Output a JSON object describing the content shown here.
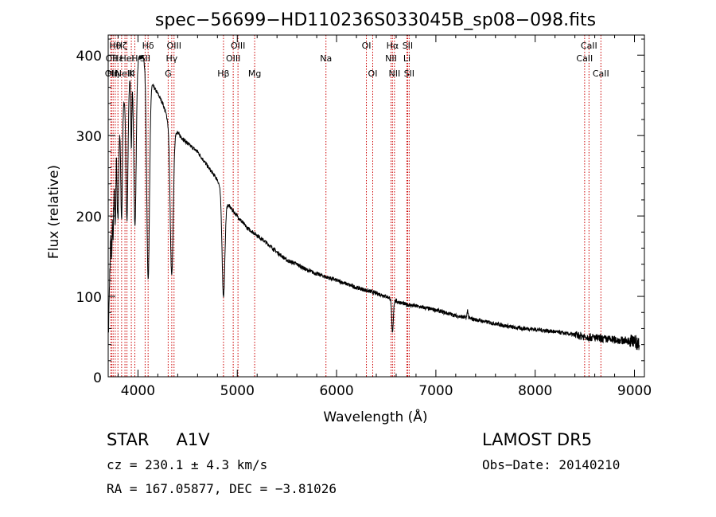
{
  "chart_data": {
    "type": "line",
    "title": "spec−56699−HD110236S033045B_sp08−098.fits",
    "xlabel": "Wavelength (Å)",
    "ylabel": "Flux (relative)",
    "xlim": [
      3700,
      9100
    ],
    "ylim": [
      0,
      425
    ],
    "x_ticks": [
      4000,
      5000,
      6000,
      7000,
      8000,
      9000
    ],
    "y_ticks": [
      0,
      100,
      200,
      300,
      400
    ],
    "grid": false,
    "continuum": {
      "x": [
        3700,
        3725,
        3745,
        3760,
        3780,
        3800,
        3820,
        3840,
        3860,
        3880,
        3900,
        3930,
        3960,
        3990,
        4020,
        4050,
        4080,
        4110,
        4150,
        4200,
        4250,
        4300,
        4330,
        4370,
        4420,
        4500,
        4600,
        4700,
        4800,
        4860,
        4900,
        5000,
        5100,
        5200,
        5300,
        5400,
        5500,
        5600,
        5700,
        5800,
        5900,
        6000,
        6200,
        6400,
        6500,
        6600,
        6700,
        6800,
        7000,
        7200,
        7400,
        7600,
        7800,
        8000,
        8200,
        8400,
        8500,
        8700,
        8900,
        9000,
        9050
      ],
      "y": [
        40,
        180,
        250,
        270,
        285,
        300,
        315,
        330,
        345,
        355,
        365,
        375,
        385,
        393,
        398,
        398,
        392,
        380,
        362,
        352,
        340,
        320,
        305,
        308,
        300,
        290,
        280,
        262,
        245,
        225,
        215,
        200,
        185,
        176,
        166,
        155,
        145,
        140,
        133,
        128,
        124,
        120,
        111,
        104,
        100,
        94,
        90,
        88,
        83,
        76,
        71,
        66,
        61,
        59,
        56,
        52,
        50,
        47,
        45,
        44,
        40
      ]
    },
    "absorption_lines": [
      {
        "x": 3735,
        "depth": 60,
        "width": 5
      },
      {
        "x": 3750,
        "depth": 75,
        "width": 6
      },
      {
        "x": 3771,
        "depth": 90,
        "width": 6
      },
      {
        "x": 3798,
        "depth": 110,
        "width": 7
      },
      {
        "x": 3835,
        "depth": 130,
        "width": 8
      },
      {
        "x": 3889,
        "depth": 165,
        "width": 10
      },
      {
        "x": 3933,
        "depth": 90,
        "width": 5
      },
      {
        "x": 3970,
        "depth": 200,
        "width": 12
      },
      {
        "x": 4102,
        "depth": 260,
        "width": 14
      },
      {
        "x": 4340,
        "depth": 180,
        "width": 15
      },
      {
        "x": 4861,
        "depth": 125,
        "width": 14
      },
      {
        "x": 6563,
        "depth": 42,
        "width": 8
      }
    ],
    "emission_lines": [
      {
        "x": 7320,
        "height": 10,
        "width": 5
      }
    ],
    "line_markers": [
      {
        "x": 3727,
        "label": "OII",
        "row": 2
      },
      {
        "x": 3734,
        "label": "OII",
        "row": 1
      },
      {
        "x": 3750,
        "label": "Hη",
        "row": 2
      },
      {
        "x": 3771,
        "label": "Hθ",
        "row": 0
      },
      {
        "x": 3798,
        "label": "Hε",
        "row": 1
      },
      {
        "x": 3835,
        "label": "Hζ",
        "row": 0
      },
      {
        "x": 3869,
        "label": "NeIII",
        "row": 2
      },
      {
        "x": 3889,
        "label": "HeI",
        "row": 1
      },
      {
        "x": 3933,
        "label": "K",
        "row": 2
      },
      {
        "x": 3968,
        "label": "H",
        "row": 1
      },
      {
        "x": 4072,
        "label": "SII",
        "row": 1
      },
      {
        "x": 4102,
        "label": "Hδ",
        "row": 0
      },
      {
        "x": 4304,
        "label": "G",
        "row": 2
      },
      {
        "x": 4340,
        "label": "Hγ",
        "row": 1
      },
      {
        "x": 4363,
        "label": "OIII",
        "row": 0
      },
      {
        "x": 4861,
        "label": "Hβ",
        "row": 2
      },
      {
        "x": 4959,
        "label": "OIII",
        "row": 1
      },
      {
        "x": 5007,
        "label": "OIII",
        "row": 0
      },
      {
        "x": 5175,
        "label": "Mg",
        "row": 2
      },
      {
        "x": 5893,
        "label": "Na",
        "row": 1
      },
      {
        "x": 6300,
        "label": "OI",
        "row": 0
      },
      {
        "x": 6364,
        "label": "OI",
        "row": 2
      },
      {
        "x": 6548,
        "label": "NII",
        "row": 1
      },
      {
        "x": 6563,
        "label": "Hα",
        "row": 0
      },
      {
        "x": 6583,
        "label": "NII",
        "row": 2
      },
      {
        "x": 6708,
        "label": "Li",
        "row": 1
      },
      {
        "x": 6716,
        "label": "SII",
        "row": 0
      },
      {
        "x": 6731,
        "label": "SII",
        "row": 2
      },
      {
        "x": 8498,
        "label": "CaII",
        "row": 1
      },
      {
        "x": 8542,
        "label": "CaII",
        "row": 0
      },
      {
        "x": 8662,
        "label": "CaII",
        "row": 2
      }
    ],
    "marker_color": "#cc0000",
    "line_color": "#000000"
  },
  "info": {
    "object_type": "STAR",
    "subclass": "A1V",
    "cz": "cz = 230.1 ± 4.3 km/s",
    "radec": "RA = 167.05877, DEC =  −3.81026",
    "survey": "LAMOST DR5",
    "obs_date": "Obs−Date: 20140210"
  }
}
